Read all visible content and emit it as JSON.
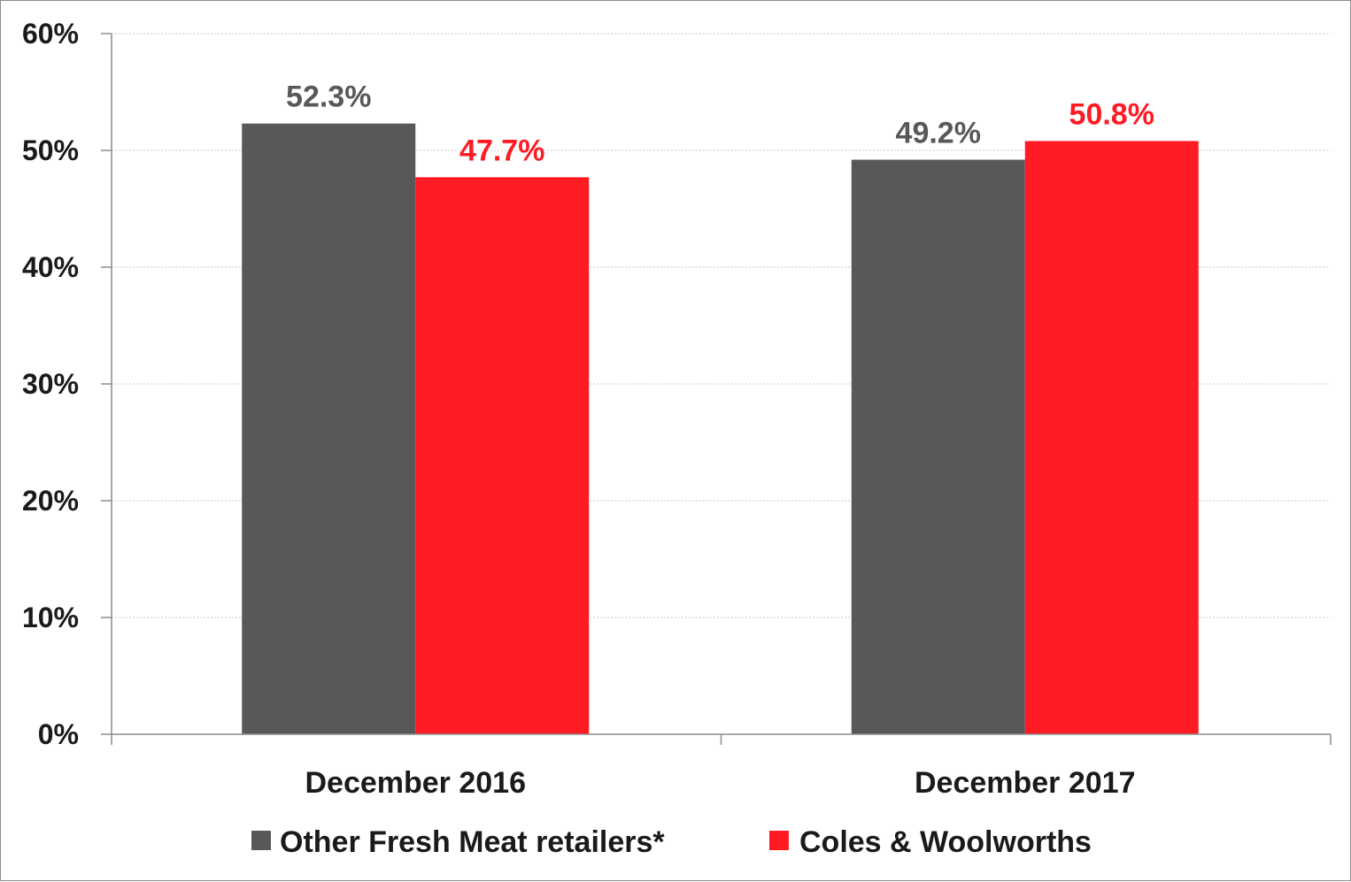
{
  "chart_data": {
    "type": "bar",
    "categories": [
      "December 2016",
      "December 2017"
    ],
    "series": [
      {
        "name": "Other Fresh Meat retailers*",
        "values": [
          52.3,
          49.2
        ],
        "labels": [
          "52.3%",
          "49.2%"
        ],
        "color": "#5a5758"
      },
      {
        "name": "Coles & Woolworths",
        "values": [
          47.7,
          50.8
        ],
        "labels": [
          "47.7%",
          "50.8%"
        ],
        "color": "#fe1b24"
      }
    ],
    "y_ticks": [
      "0%",
      "10%",
      "20%",
      "30%",
      "40%",
      "50%",
      "60%"
    ],
    "ylim": [
      0,
      60
    ],
    "grid": true,
    "legend_position": "bottom"
  }
}
